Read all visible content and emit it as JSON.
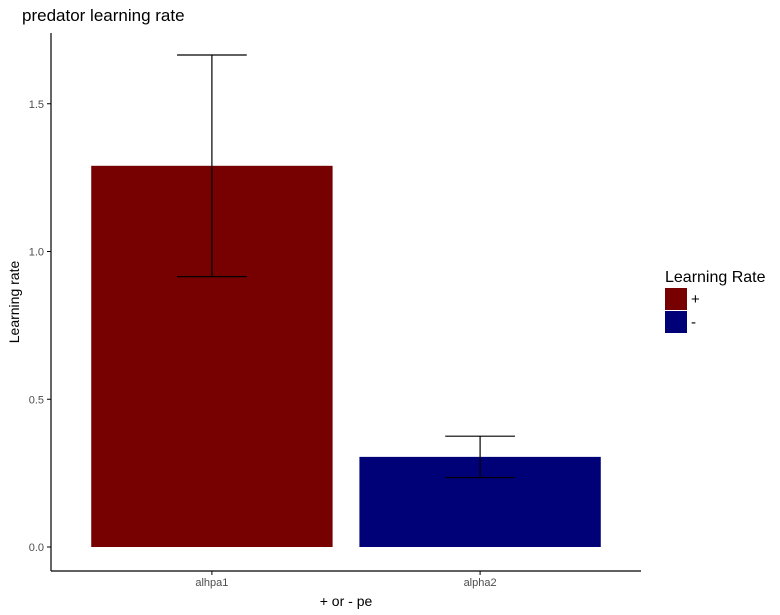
{
  "chart_data": {
    "type": "bar",
    "title": "predator learning rate",
    "xlabel": "+ or - pe",
    "ylabel": "Learning rate",
    "categories": [
      "alhpa1",
      "alpha2"
    ],
    "values": [
      1.29,
      0.305
    ],
    "error_low": [
      0.915,
      0.235
    ],
    "error_high": [
      1.665,
      0.375
    ],
    "colors": [
      "#770000",
      "#000077"
    ],
    "ylim": [
      0,
      1.7
    ],
    "yticks": [
      0.0,
      0.5,
      1.0,
      1.5
    ],
    "ytick_labels": [
      "0.0",
      "0.5",
      "1.0",
      "1.5"
    ],
    "grid": false,
    "legend": {
      "title": "Learning Rate",
      "placement": "right",
      "entries": [
        {
          "label": "+",
          "color": "#770000"
        },
        {
          "label": "-",
          "color": "#000077"
        }
      ]
    }
  }
}
